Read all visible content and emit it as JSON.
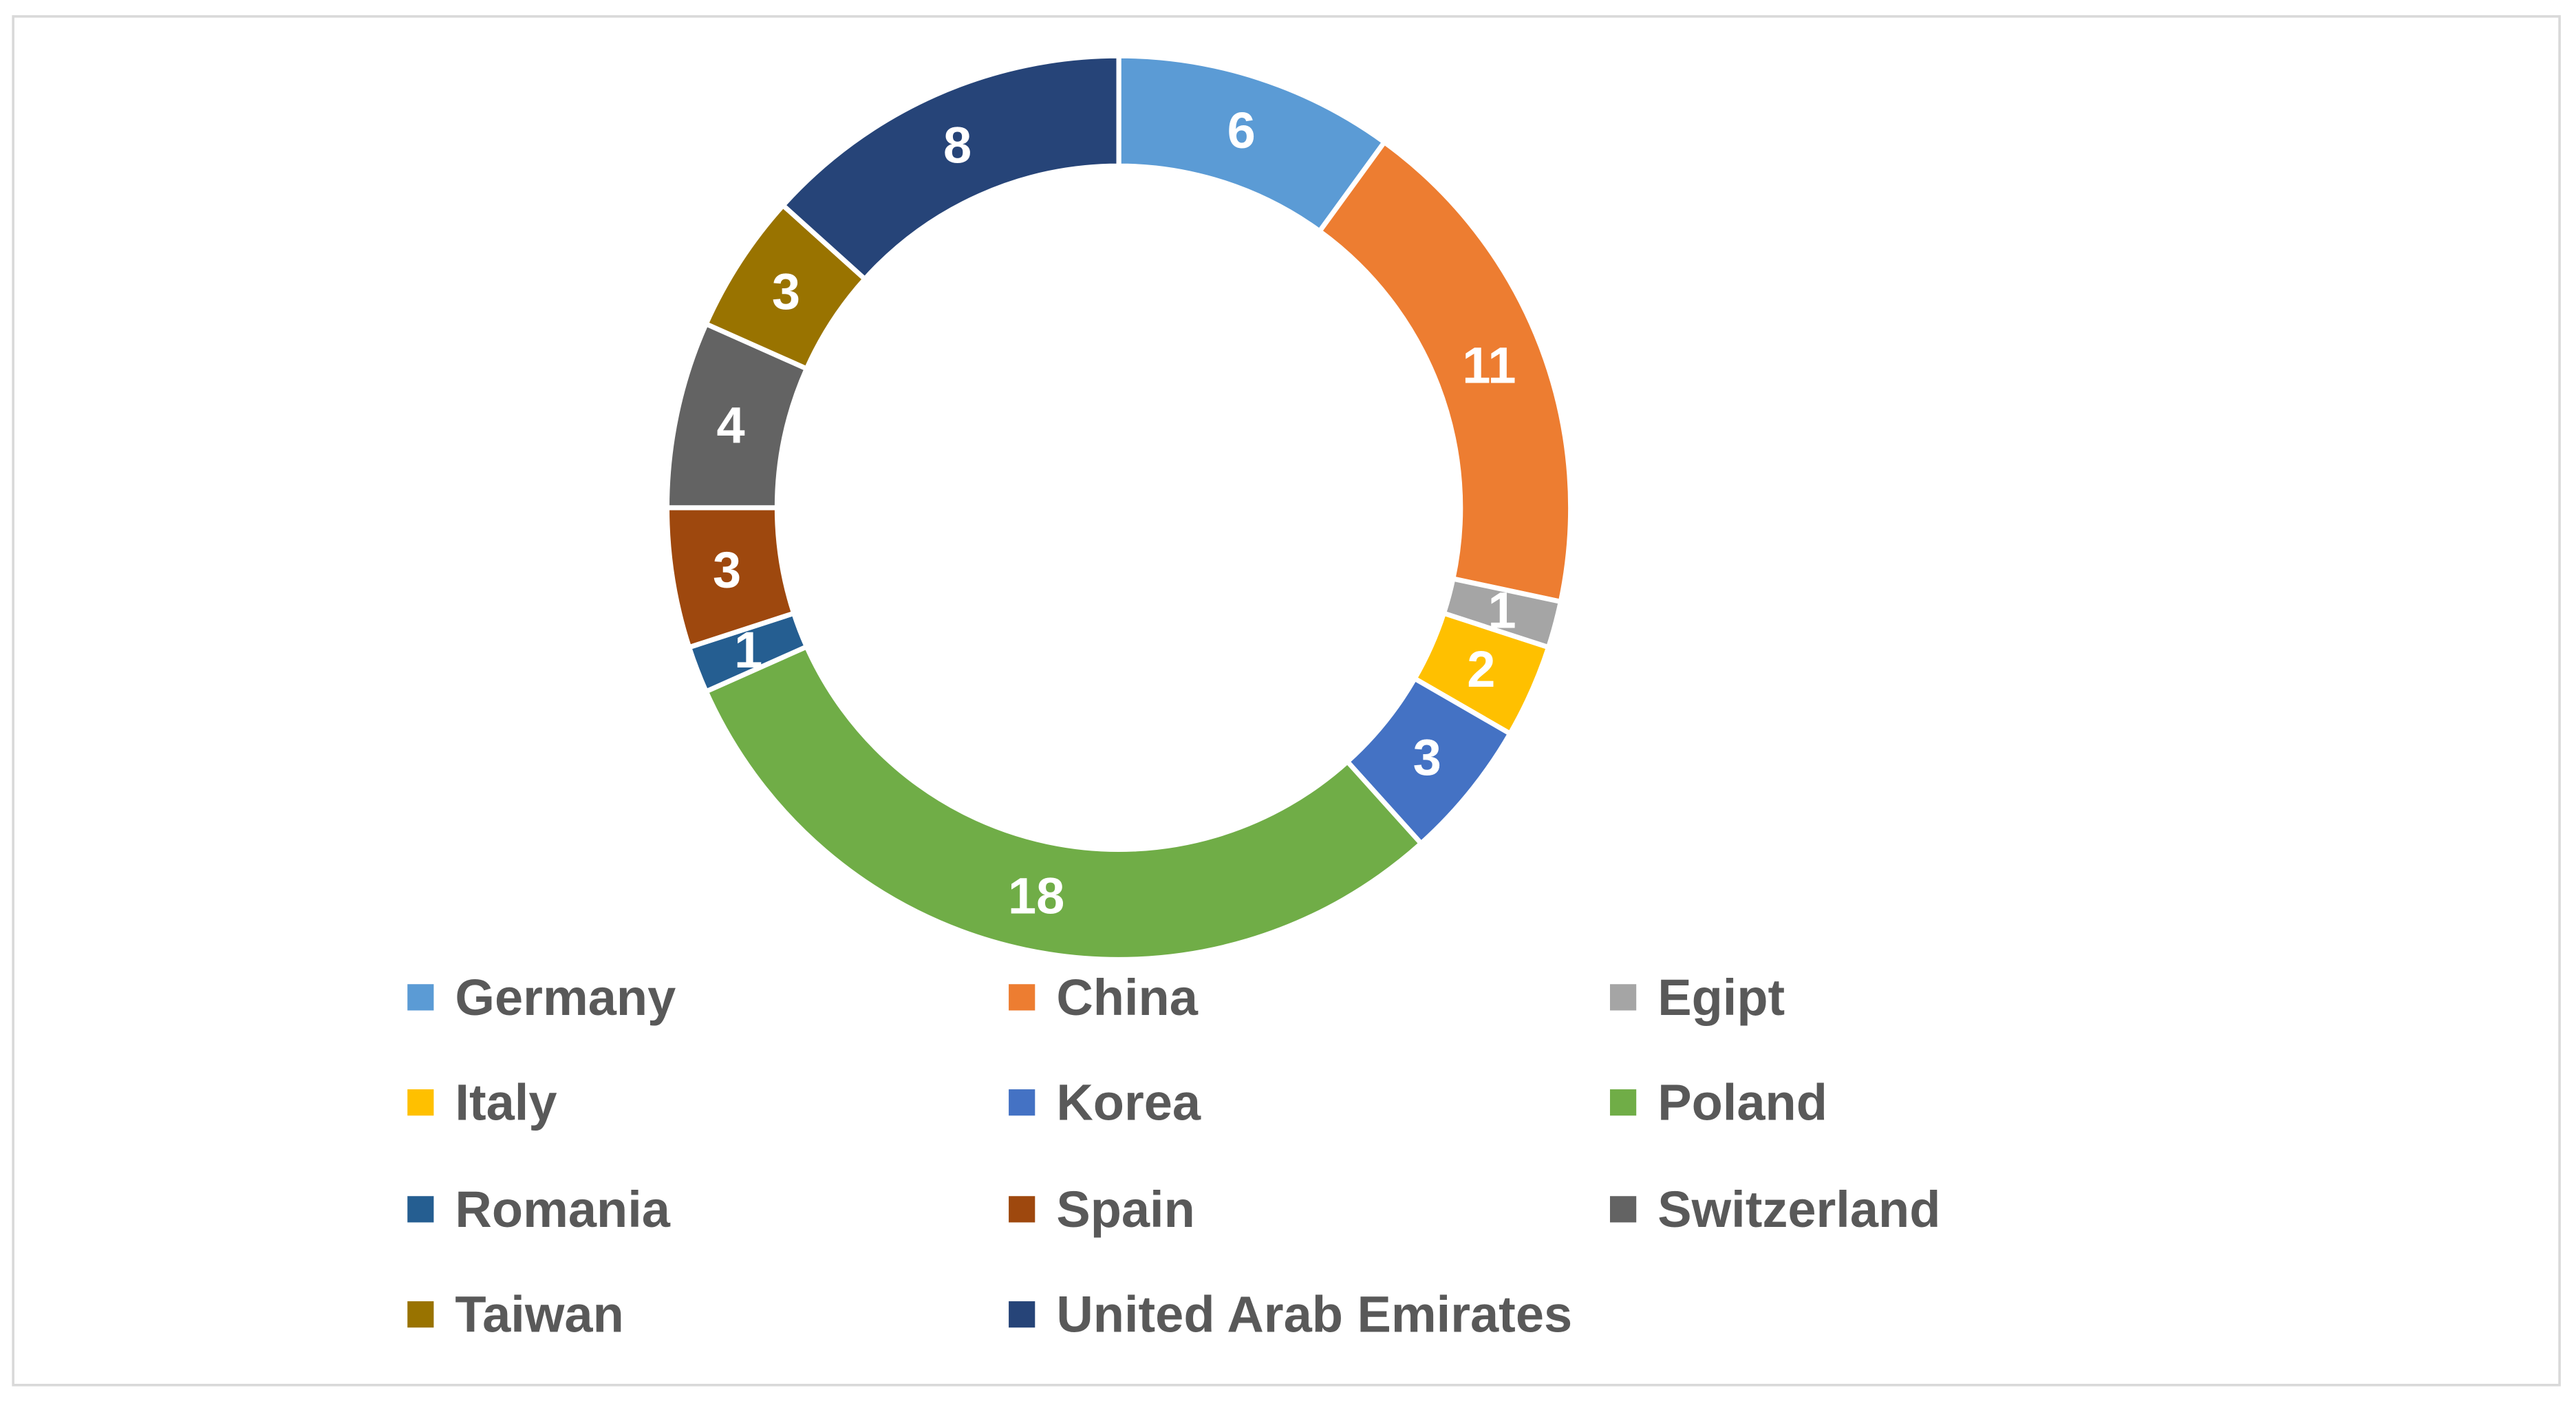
{
  "chart_data": {
    "type": "donut",
    "categories": [
      "Germany",
      "China",
      "Egipt",
      "Italy",
      "Korea",
      "Poland",
      "Romania",
      "Spain",
      "Switzerland",
      "Taiwan",
      "United Arab Emirates"
    ],
    "values": [
      6,
      11,
      1,
      2,
      3,
      18,
      1,
      3,
      4,
      3,
      8
    ],
    "colors": [
      "#5b9bd5",
      "#ed7d31",
      "#a5a5a5",
      "#ffc000",
      "#4472c4",
      "#70ad47",
      "#255e91",
      "#9e480e",
      "#636363",
      "#997300",
      "#264478"
    ],
    "legend": "bottom"
  }
}
